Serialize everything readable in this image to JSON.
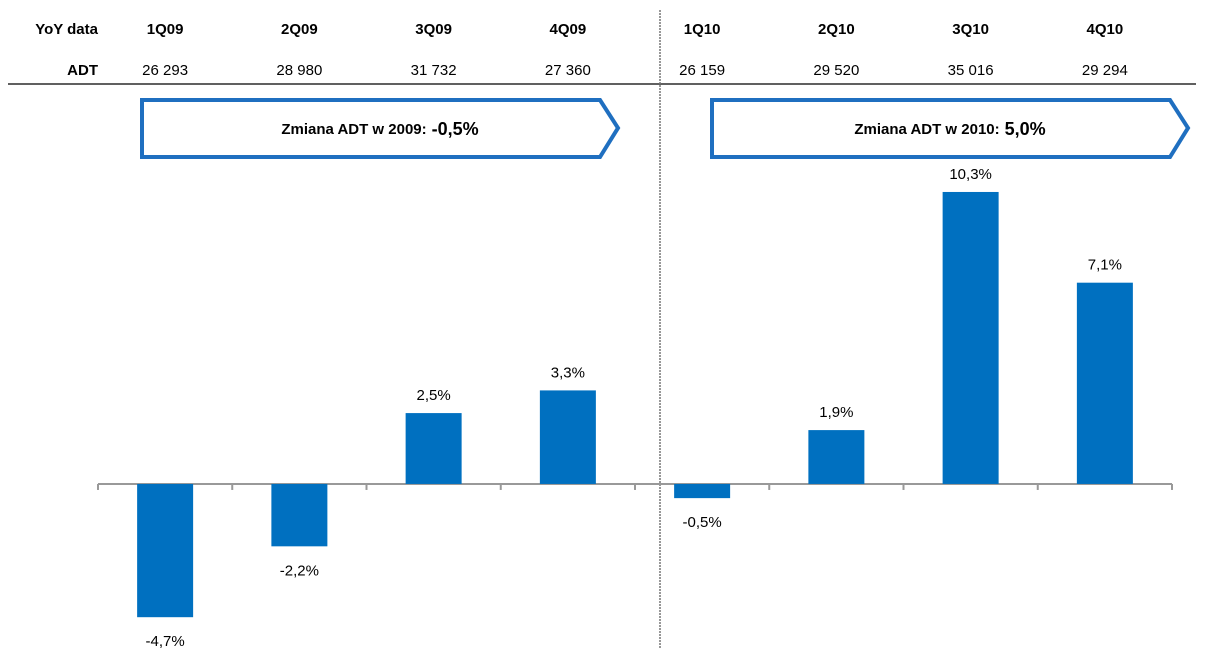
{
  "table": {
    "header": "YoY data",
    "row_label": "ADT",
    "values": [
      "26 293",
      "28 980",
      "31 732",
      "27 360",
      "26 159",
      "29 520",
      "35 016",
      "29 294"
    ]
  },
  "chart_data": {
    "type": "bar",
    "categories": [
      "1Q09",
      "2Q09",
      "3Q09",
      "4Q09",
      "1Q10",
      "2Q10",
      "3Q10",
      "4Q10"
    ],
    "values": [
      -4.7,
      -2.2,
      2.5,
      3.3,
      -0.5,
      1.9,
      10.3,
      7.1
    ],
    "value_labels": [
      "-4,7%",
      "-2,2%",
      "2,5%",
      "3,3%",
      "-0,5%",
      "1,9%",
      "10,3%",
      "7,1%"
    ],
    "color": "#0070c0",
    "ylim": [
      -5,
      10.5
    ],
    "annotations": [
      {
        "text": "Zmiana ADT w 2009:",
        "value": "-0,5%"
      },
      {
        "text": "Zmiana ADT w 2010:",
        "value": "5,0%"
      }
    ]
  }
}
